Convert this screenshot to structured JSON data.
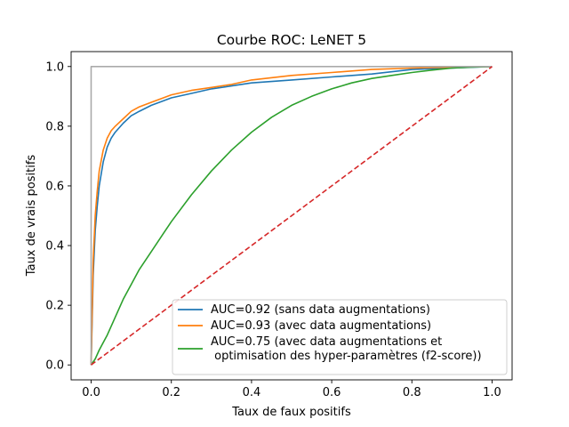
{
  "chart_data": {
    "type": "line",
    "title": "Courbe ROC:  LeNET 5",
    "xlabel": "Taux de faux positifs",
    "ylabel": "Taux de vrais positifs",
    "xlim": [
      -0.05,
      1.05
    ],
    "ylim": [
      -0.05,
      1.05
    ],
    "xticks": [
      0.0,
      0.2,
      0.4,
      0.6,
      0.8,
      1.0
    ],
    "yticks": [
      0.0,
      0.2,
      0.4,
      0.6,
      0.8,
      1.0
    ],
    "xtick_labels": [
      "0.0",
      "0.2",
      "0.4",
      "0.6",
      "0.8",
      "1.0"
    ],
    "ytick_labels": [
      "0.0",
      "0.2",
      "0.4",
      "0.6",
      "0.8",
      "1.0"
    ],
    "grid": false,
    "legend_position": "lower right",
    "series": [
      {
        "name": "AUC=0.92 (sans data augmentations)",
        "color": "#1f77b4",
        "in_legend": true,
        "x": [
          0,
          0.005,
          0.01,
          0.015,
          0.02,
          0.03,
          0.04,
          0.05,
          0.06,
          0.08,
          0.1,
          0.12,
          0.15,
          0.18,
          0.2,
          0.25,
          0.3,
          0.35,
          0.4,
          0.5,
          0.6,
          0.7,
          0.8,
          0.9,
          1.0
        ],
        "y": [
          0,
          0.3,
          0.45,
          0.53,
          0.6,
          0.68,
          0.73,
          0.76,
          0.78,
          0.81,
          0.835,
          0.85,
          0.87,
          0.885,
          0.895,
          0.91,
          0.925,
          0.935,
          0.945,
          0.955,
          0.965,
          0.975,
          0.99,
          0.995,
          1.0
        ]
      },
      {
        "name": "AUC=0.93 (avec data augmentations)",
        "color": "#ff7f0e",
        "in_legend": true,
        "x": [
          0,
          0.005,
          0.01,
          0.015,
          0.02,
          0.03,
          0.04,
          0.05,
          0.06,
          0.08,
          0.1,
          0.12,
          0.15,
          0.18,
          0.2,
          0.25,
          0.3,
          0.35,
          0.4,
          0.5,
          0.6,
          0.7,
          0.8,
          0.9,
          1.0
        ],
        "y": [
          0,
          0.35,
          0.5,
          0.58,
          0.65,
          0.72,
          0.76,
          0.785,
          0.8,
          0.825,
          0.85,
          0.865,
          0.88,
          0.895,
          0.905,
          0.92,
          0.93,
          0.94,
          0.955,
          0.97,
          0.98,
          0.99,
          0.995,
          0.998,
          1.0
        ]
      },
      {
        "name": "AUC=0.75 (avec data augmentations et\n optimisation des hyper-paramètres (f2-score))",
        "color": "#2ca02c",
        "in_legend": true,
        "x": [
          0,
          0.01,
          0.02,
          0.04,
          0.06,
          0.08,
          0.1,
          0.12,
          0.15,
          0.18,
          0.2,
          0.25,
          0.3,
          0.35,
          0.4,
          0.45,
          0.5,
          0.55,
          0.6,
          0.65,
          0.7,
          0.75,
          0.8,
          0.85,
          0.9,
          0.95,
          1.0
        ],
        "y": [
          0,
          0.02,
          0.05,
          0.1,
          0.16,
          0.22,
          0.27,
          0.32,
          0.38,
          0.44,
          0.48,
          0.57,
          0.65,
          0.72,
          0.78,
          0.83,
          0.87,
          0.9,
          0.925,
          0.945,
          0.96,
          0.97,
          0.98,
          0.988,
          0.995,
          0.998,
          1.0
        ]
      },
      {
        "name": "",
        "color": "#aaaaaa",
        "in_legend": false,
        "x": [
          0,
          0,
          1
        ],
        "y": [
          0,
          1,
          1
        ]
      },
      {
        "name": "",
        "color": "#d62728",
        "in_legend": false,
        "dashed": true,
        "x": [
          0,
          1
        ],
        "y": [
          0,
          1
        ]
      }
    ]
  }
}
